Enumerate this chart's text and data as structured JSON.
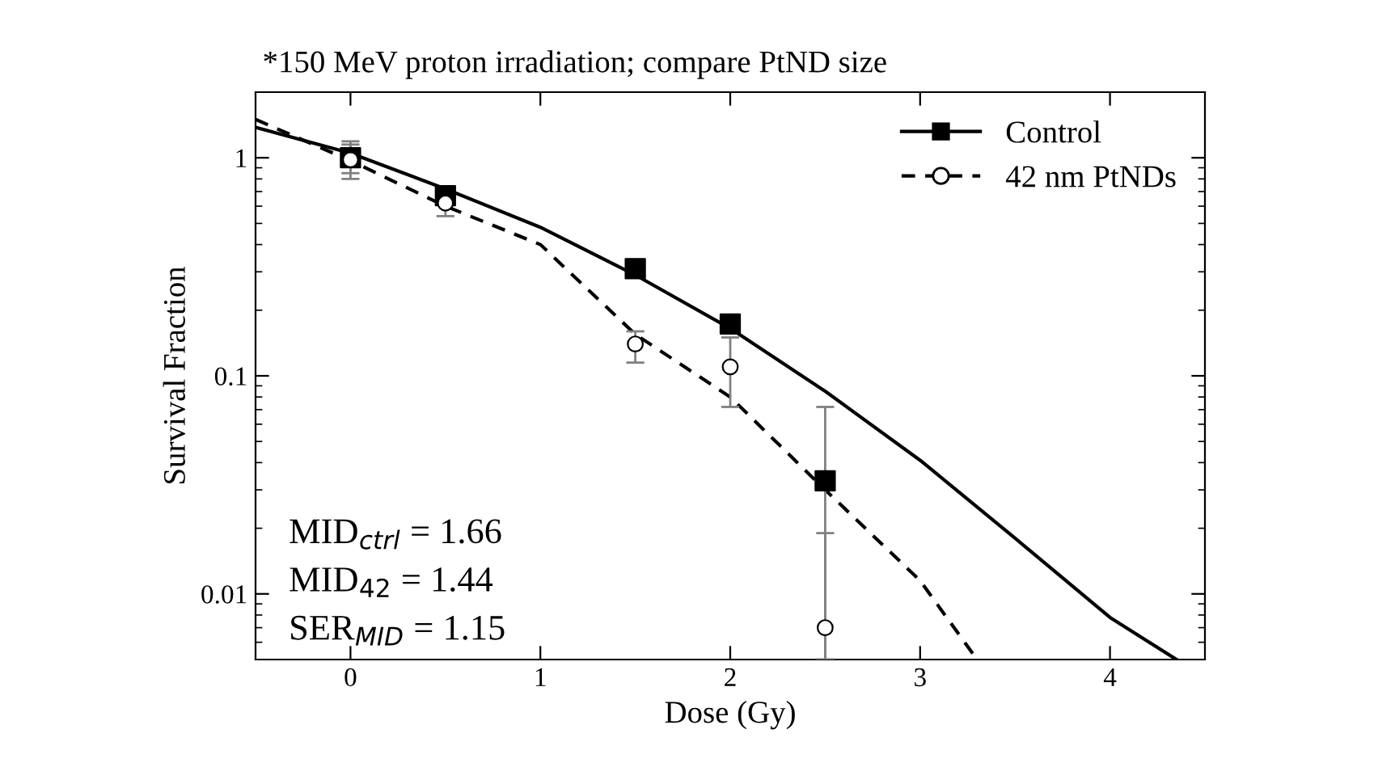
{
  "chart_data": {
    "type": "scatter",
    "title": "*150 MeV proton irradiation; compare PtND size",
    "xlabel": "Dose (Gy)",
    "ylabel": "Survival Fraction",
    "log": "y",
    "xlim": [
      -0.5,
      4.5
    ],
    "xticks": [
      0,
      1,
      2,
      3,
      4
    ],
    "ylim": [
      0.005,
      2
    ],
    "yticks": [
      {
        "value": 0.01,
        "label": "0.01"
      },
      {
        "value": 0.1,
        "label": "0.1"
      },
      {
        "value": 1,
        "label": "1"
      }
    ],
    "legend": "top right",
    "grid": false,
    "series": [
      {
        "name": "Control",
        "marker": "square",
        "line_style": "solid",
        "color": "#000000",
        "x": [
          0,
          0.5,
          1.5,
          2,
          2.5
        ],
        "values": [
          1.0,
          0.67,
          0.31,
          0.173,
          0.033
        ],
        "errors": [
          0.15,
          0.05,
          null,
          null,
          [
            0.005,
            0.072
          ]
        ]
      },
      {
        "type": "line",
        "marker": "none",
        "line_style": "solid",
        "color": "#000000",
        "x": [
          -0.5,
          0,
          0.5,
          1,
          1.5,
          2,
          2.5,
          3,
          3.5,
          4,
          4.35
        ],
        "values": [
          1.38,
          1.05,
          0.72,
          0.48,
          0.29,
          0.165,
          0.085,
          0.041,
          0.018,
          0.0078,
          0.005
        ]
      },
      {
        "name": "42 nm PtNDs",
        "marker": "circle",
        "line_style": "dashed",
        "color": "#000000",
        "x": [
          0,
          0.5,
          1.5,
          2,
          2.5
        ],
        "values": [
          0.98,
          0.62,
          0.14,
          0.11,
          0.007
        ],
        "errors": [
          [
            0.8,
            1.19
          ],
          [
            0.54,
            0.72
          ],
          [
            0.115,
            0.16
          ],
          [
            0.072,
            0.15
          ],
          [
            0.005,
            0.019
          ]
        ]
      },
      {
        "type": "line",
        "marker": "none",
        "line_style": "dashed",
        "color": "#000000",
        "x": [
          -0.5,
          0,
          0.5,
          1,
          1.5,
          2,
          2.5,
          3,
          3.3
        ],
        "values": [
          1.5,
          0.97,
          0.6,
          0.4,
          0.155,
          0.08,
          0.03,
          0.0115,
          0.005
        ]
      }
    ],
    "annotations": [
      "MID$_{ctrl}$ = 1.66",
      "MID$_{42}$ = 1.44",
      "SER$_{MID}$ = 1.15"
    ]
  }
}
